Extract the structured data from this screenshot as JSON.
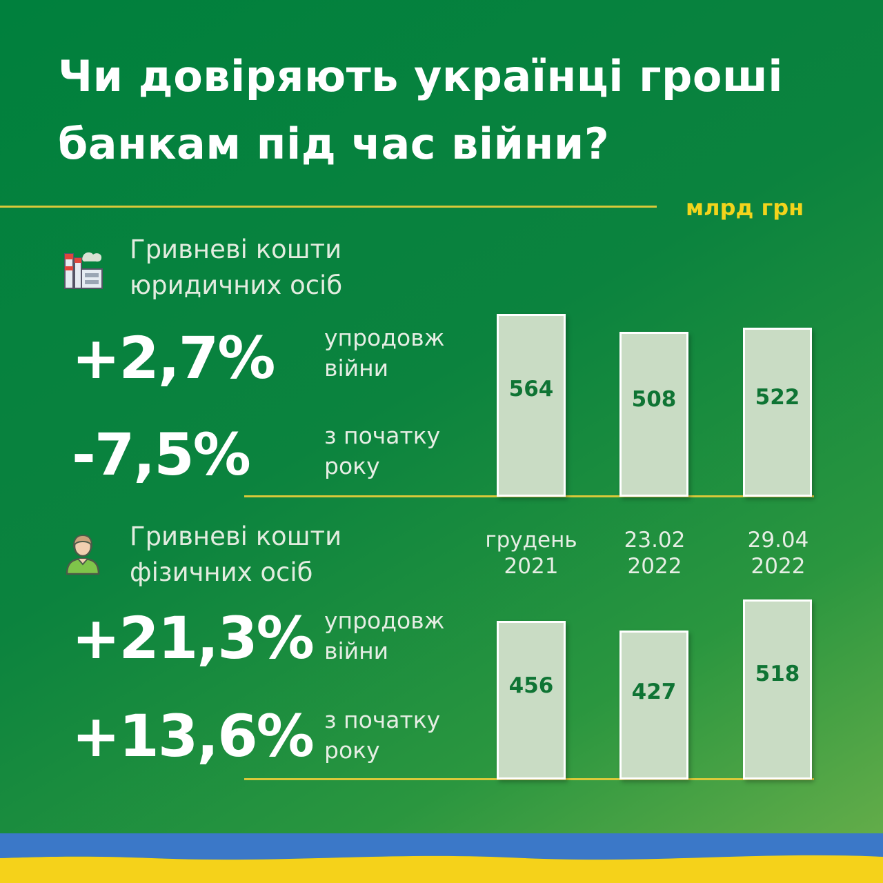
{
  "title_line1": "Чи довіряють українці гроші",
  "title_line2": "банкам під час війни?",
  "unit": "млрд грн",
  "colors": {
    "background": "#0a7f3c",
    "accent": "#d9c93a",
    "unit_text": "#f2d41c",
    "bar_fill": "#c9dcc4",
    "value_text": "#0f7434"
  },
  "sections": [
    {
      "icon": "factory-icon",
      "label_line1": "Гривневі кошти",
      "label_line2": "юридичних осіб",
      "stat1_value": "+2,7%",
      "stat1_label_line1": "упродовж",
      "stat1_label_line2": "війни",
      "stat2_value": "-7,5%",
      "stat2_label_line1": "з початку",
      "stat2_label_line2": "року"
    },
    {
      "icon": "person-icon",
      "label_line1": "Гривневі кошти",
      "label_line2": "фізичних осіб",
      "stat1_value": "+21,3%",
      "stat1_label_line1": "упродовж",
      "stat1_label_line2": "війни",
      "stat2_value": "+13,6%",
      "stat2_label_line1": "з початку",
      "stat2_label_line2": "року"
    }
  ],
  "chart_data": [
    {
      "type": "bar",
      "categories": [
        "грудень 2021",
        "23.02 2022",
        "29.04 2022"
      ],
      "values": [
        564,
        508,
        522
      ],
      "ylabel": "млрд грн"
    },
    {
      "type": "bar",
      "categories": [
        "грудень 2021",
        "23.02 2022",
        "29.04 2022"
      ],
      "values": [
        456,
        427,
        518
      ],
      "ylabel": "млрд грн"
    }
  ],
  "categories_display": [
    {
      "line1": "грудень",
      "line2": "2021"
    },
    {
      "line1": "23.02",
      "line2": "2022"
    },
    {
      "line1": "29.04",
      "line2": "2022"
    }
  ],
  "flag": {
    "top_color": "#3b78c8",
    "bottom_color": "#f5d21a"
  }
}
